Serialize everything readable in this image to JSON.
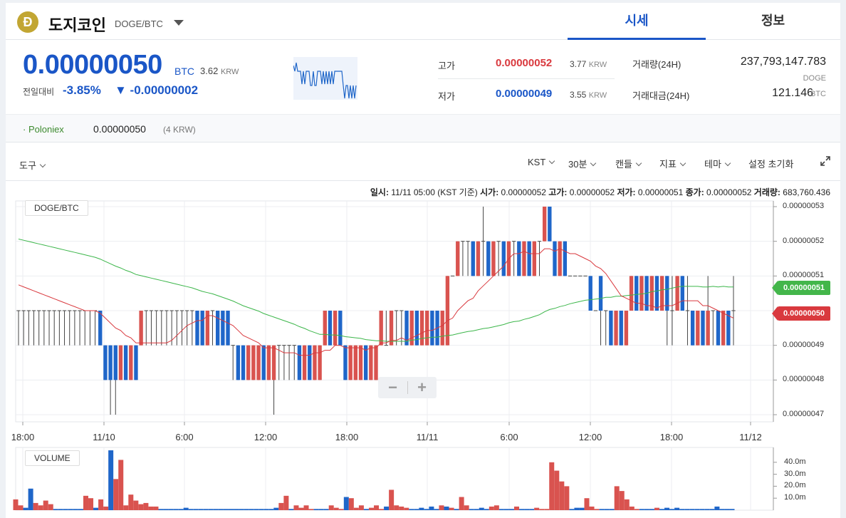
{
  "header": {
    "coin_symbol_glyph": "Ð",
    "coin_name": "도지코인",
    "pair": "DOGE/BTC",
    "tabs": [
      {
        "label": "시세"
      },
      {
        "label": "정보"
      }
    ]
  },
  "summary": {
    "price": "0.00000050",
    "price_unit": "BTC",
    "price_krw": "3.62",
    "krw_unit": "KRW",
    "change_label": "전일대비",
    "change_pct": "-3.85%",
    "change_abs": "▼ -0.00000002",
    "high_label": "고가",
    "high_value": "0.00000052",
    "high_krw": "3.77",
    "low_label": "저가",
    "low_value": "0.00000049",
    "low_krw": "3.55",
    "volume_label": "거래량(24H)",
    "volume_value": "237,793,147.783",
    "volume_unit": "DOGE",
    "amount_label": "거래대금(24H)",
    "amount_value": "121.146",
    "amount_unit": "BTC"
  },
  "exchange": {
    "name": "· Poloniex",
    "price": "0.00000050",
    "krw": "(4 KRW)"
  },
  "toolbar": {
    "tools": "도구",
    "timezone": "KST",
    "interval": "30분",
    "chart_type": "캔들",
    "indicator": "지표",
    "theme": "테마",
    "reset": "설정 초기화"
  },
  "infobar": {
    "time_label": "일시:",
    "time_value": "11/11 05:00 (KST 기준)",
    "open_label": "시가:",
    "open_value": "0.00000052",
    "high_label": "고가:",
    "high_value": "0.00000052",
    "low_label": "저가:",
    "low_value": "0.00000051",
    "close_label": "종가:",
    "close_value": "0.00000052",
    "volume_label": "거래량:",
    "volume_value": "683,760.436"
  },
  "chart_data": {
    "type": "candlestick",
    "series_label": "DOGE/BTC",
    "volume_label": "VOLUME",
    "y_ticks": [
      "0.00000053",
      "0.00000052",
      "0.00000051",
      "0.00000049",
      "0.00000048",
      "0.00000047"
    ],
    "x_ticks": [
      "18:00",
      "11/10",
      "6:00",
      "12:00",
      "18:00",
      "11/11",
      "6:00",
      "12:00",
      "18:00",
      "11/12"
    ],
    "volume_ticks": [
      "40.0m",
      "30.0m",
      "20.0m",
      "10.0m"
    ],
    "ylim": [
      4.7e-08,
      5.3e-08
    ],
    "last_ma_value": "0.00000051",
    "last_price_value": "0.00000050",
    "colors": {
      "up": "#d9534f",
      "down": "#1f66c9",
      "ma_long": "#3cb64a",
      "ma_short": "#d9393e"
    },
    "candles": [
      [
        50,
        50,
        50,
        49
      ],
      [
        50,
        50,
        50,
        49
      ],
      [
        50,
        50,
        50,
        49
      ],
      [
        50,
        50,
        50,
        49
      ],
      [
        50,
        50,
        50,
        49
      ],
      [
        50,
        50,
        50,
        49
      ],
      [
        50,
        50,
        50,
        49
      ],
      [
        50,
        50,
        50,
        49
      ],
      [
        50,
        50,
        50,
        49
      ],
      [
        50,
        50,
        50,
        49
      ],
      [
        50,
        50,
        50,
        49
      ],
      [
        50,
        50,
        50,
        49
      ],
      [
        50,
        50,
        50,
        49
      ],
      [
        50,
        50,
        50,
        49
      ],
      [
        50,
        50,
        50,
        49
      ],
      [
        50,
        50,
        50,
        49
      ],
      [
        50,
        49,
        50,
        49
      ],
      [
        49,
        48,
        49,
        48
      ],
      [
        49,
        48,
        49,
        47
      ],
      [
        49,
        48,
        49,
        47
      ],
      [
        48,
        49,
        49,
        48
      ],
      [
        49,
        48,
        49,
        48
      ],
      [
        48,
        49,
        49,
        48
      ],
      [
        49,
        48,
        49,
        48
      ],
      [
        49,
        50,
        50,
        49
      ],
      [
        50,
        50,
        50,
        49
      ],
      [
        50,
        50,
        50,
        49
      ],
      [
        50,
        50,
        50,
        49
      ],
      [
        50,
        50,
        50,
        49
      ],
      [
        50,
        50,
        50,
        49
      ],
      [
        50,
        50,
        50,
        49
      ],
      [
        50,
        50,
        50,
        49
      ],
      [
        50,
        50,
        50,
        49
      ],
      [
        50,
        50,
        50,
        49
      ],
      [
        50,
        50,
        50,
        49
      ],
      [
        50,
        49,
        50,
        49
      ],
      [
        50,
        49,
        50,
        49
      ],
      [
        49,
        50,
        50,
        49
      ],
      [
        50,
        50,
        50,
        49
      ],
      [
        50,
        49,
        50,
        49
      ],
      [
        50,
        49,
        50,
        49
      ],
      [
        50,
        49,
        50,
        49
      ],
      [
        49,
        49,
        49,
        48
      ],
      [
        49,
        48,
        49,
        48
      ],
      [
        49,
        48,
        49,
        48
      ],
      [
        48,
        49,
        49,
        48
      ],
      [
        48,
        49,
        49,
        48
      ],
      [
        48,
        49,
        49,
        48
      ],
      [
        49,
        48,
        49,
        48
      ],
      [
        48,
        49,
        49,
        48
      ],
      [
        48,
        49,
        49,
        47
      ],
      [
        49,
        49,
        49,
        48
      ],
      [
        49,
        49,
        49,
        48
      ],
      [
        49,
        49,
        49,
        48
      ],
      [
        49,
        49,
        49,
        48
      ],
      [
        49,
        48,
        49,
        48
      ],
      [
        48,
        49,
        49,
        48
      ],
      [
        49,
        48,
        49,
        48
      ],
      [
        48,
        49,
        49,
        48
      ],
      [
        48,
        49,
        49,
        48
      ],
      [
        49,
        50,
        50,
        49
      ],
      [
        50,
        49,
        50,
        49
      ],
      [
        49,
        50,
        50,
        49
      ],
      [
        50,
        49,
        50,
        49
      ],
      [
        49,
        48,
        49,
        48
      ],
      [
        48,
        49,
        49,
        48
      ],
      [
        48,
        49,
        49,
        48
      ],
      [
        48,
        49,
        49,
        48
      ],
      [
        49,
        48,
        49,
        48
      ],
      [
        48,
        49,
        49,
        48
      ],
      [
        48,
        49,
        49,
        48
      ],
      [
        49,
        50,
        50,
        49
      ],
      [
        49,
        49,
        50,
        49
      ],
      [
        49,
        50,
        50,
        49
      ],
      [
        50,
        50,
        50,
        49
      ],
      [
        50,
        50,
        50,
        49
      ],
      [
        50,
        49,
        50,
        49
      ],
      [
        49,
        50,
        50,
        49
      ],
      [
        50,
        49,
        50,
        49
      ],
      [
        49,
        50,
        50,
        49
      ],
      [
        49,
        50,
        50,
        49
      ],
      [
        50,
        49,
        50,
        49
      ],
      [
        50,
        49,
        50,
        49
      ],
      [
        49,
        50,
        50,
        49
      ],
      [
        49,
        51,
        51,
        49
      ],
      [
        51,
        51,
        51,
        51
      ],
      [
        51,
        52,
        52,
        51
      ],
      [
        52,
        52,
        52,
        51
      ],
      [
        52,
        52,
        52,
        51
      ],
      [
        52,
        51,
        52,
        51
      ],
      [
        51,
        52,
        52,
        51
      ],
      [
        52,
        52,
        53,
        51
      ],
      [
        52,
        51,
        52,
        51
      ],
      [
        51,
        52,
        52,
        51
      ],
      [
        52,
        52,
        52,
        51
      ],
      [
        52,
        51,
        52,
        51
      ],
      [
        51,
        52,
        52,
        51
      ],
      [
        52,
        52,
        52,
        51
      ],
      [
        52,
        51,
        52,
        51
      ],
      [
        51,
        52,
        52,
        51
      ],
      [
        52,
        51,
        52,
        51
      ],
      [
        51,
        52,
        52,
        51
      ],
      [
        52,
        52,
        52,
        51
      ],
      [
        52,
        53,
        53,
        52
      ],
      [
        53,
        52,
        53,
        52
      ],
      [
        52,
        51,
        52,
        51
      ],
      [
        51,
        52,
        52,
        51
      ],
      [
        52,
        51,
        52,
        51
      ],
      [
        51,
        51,
        51,
        51
      ],
      [
        51,
        51,
        51,
        51
      ],
      [
        51,
        51,
        51,
        51
      ],
      [
        51,
        51,
        51,
        51
      ],
      [
        51,
        50,
        51,
        50
      ],
      [
        50,
        50,
        50,
        50
      ],
      [
        51,
        50,
        51,
        49
      ],
      [
        50,
        50,
        50,
        49
      ],
      [
        50,
        49,
        50,
        49
      ],
      [
        49,
        50,
        50,
        49
      ],
      [
        50,
        49,
        50,
        49
      ],
      [
        49,
        50,
        50,
        49
      ],
      [
        50,
        51,
        51,
        50
      ],
      [
        51,
        50,
        51,
        50
      ],
      [
        50,
        51,
        51,
        50
      ],
      [
        51,
        50,
        51,
        50
      ],
      [
        50,
        51,
        51,
        50
      ],
      [
        51,
        50,
        51,
        50
      ],
      [
        50,
        51,
        51,
        50
      ],
      [
        51,
        50,
        51,
        49
      ],
      [
        50,
        50,
        51,
        49
      ],
      [
        50,
        51,
        51,
        50
      ],
      [
        51,
        50,
        51,
        50
      ],
      [
        50,
        50,
        51,
        49
      ],
      [
        50,
        49,
        50,
        49
      ],
      [
        49,
        50,
        50,
        49
      ],
      [
        50,
        49,
        50,
        49
      ],
      [
        49,
        50,
        51,
        49
      ],
      [
        50,
        50,
        50,
        49
      ],
      [
        50,
        49,
        50,
        49
      ],
      [
        49,
        50,
        50,
        49
      ],
      [
        50,
        49,
        50,
        49
      ],
      [
        50,
        50,
        51,
        49
      ]
    ],
    "volume": [
      [
        9,
        1
      ],
      [
        4,
        1
      ],
      [
        2,
        0
      ],
      [
        18,
        0
      ],
      [
        6,
        1
      ],
      [
        4,
        1
      ],
      [
        8,
        1
      ],
      [
        5,
        1
      ],
      [
        1,
        0
      ],
      [
        1,
        0
      ],
      [
        1,
        0
      ],
      [
        1,
        0
      ],
      [
        1,
        0
      ],
      [
        1,
        0
      ],
      [
        12,
        1
      ],
      [
        10,
        1
      ],
      [
        2,
        0
      ],
      [
        9,
        1
      ],
      [
        3,
        1
      ],
      [
        50,
        0
      ],
      [
        26,
        1
      ],
      [
        42,
        1
      ],
      [
        4,
        1
      ],
      [
        13,
        1
      ],
      [
        8,
        1
      ],
      [
        5,
        1
      ],
      [
        6,
        1
      ],
      [
        3,
        1
      ],
      [
        3,
        1
      ],
      [
        1,
        0
      ],
      [
        1,
        0
      ],
      [
        1,
        0
      ],
      [
        1,
        0
      ],
      [
        1,
        0
      ],
      [
        2,
        0
      ],
      [
        1,
        0
      ],
      [
        1,
        0
      ],
      [
        1,
        0
      ],
      [
        1,
        0
      ],
      [
        1,
        0
      ],
      [
        1,
        0
      ],
      [
        1,
        0
      ],
      [
        1,
        0
      ],
      [
        1,
        0
      ],
      [
        1,
        0
      ],
      [
        1,
        0
      ],
      [
        1,
        0
      ],
      [
        1,
        0
      ],
      [
        1,
        0
      ],
      [
        1,
        0
      ],
      [
        1,
        0
      ],
      [
        1,
        0
      ],
      [
        2,
        0
      ],
      [
        6,
        1
      ],
      [
        12,
        1
      ],
      [
        1,
        0
      ],
      [
        4,
        1
      ],
      [
        2,
        1
      ],
      [
        4,
        1
      ],
      [
        1,
        1
      ],
      [
        1,
        0
      ],
      [
        1,
        0
      ],
      [
        1,
        0
      ],
      [
        4,
        1
      ],
      [
        2,
        1
      ],
      [
        1,
        1
      ],
      [
        11,
        0
      ],
      [
        10,
        1
      ],
      [
        2,
        1
      ],
      [
        4,
        1
      ],
      [
        1,
        0
      ],
      [
        2,
        1
      ],
      [
        4,
        1
      ],
      [
        1,
        1
      ],
      [
        3,
        0
      ],
      [
        17,
        1
      ],
      [
        4,
        1
      ],
      [
        3,
        1
      ],
      [
        2,
        1
      ],
      [
        1,
        0
      ],
      [
        1,
        0
      ],
      [
        2,
        0
      ],
      [
        1,
        0
      ],
      [
        3,
        0
      ],
      [
        1,
        0
      ],
      [
        4,
        1
      ],
      [
        3,
        0
      ],
      [
        2,
        1
      ],
      [
        1,
        0
      ],
      [
        11,
        1
      ],
      [
        4,
        1
      ],
      [
        1,
        0
      ],
      [
        1,
        0
      ],
      [
        2,
        0
      ],
      [
        1,
        0
      ],
      [
        3,
        1
      ],
      [
        4,
        1
      ],
      [
        1,
        0
      ],
      [
        1,
        0
      ],
      [
        1,
        0
      ],
      [
        3,
        1
      ],
      [
        1,
        0
      ],
      [
        1,
        0
      ],
      [
        1,
        0
      ],
      [
        2,
        1
      ],
      [
        1,
        1
      ],
      [
        1,
        1
      ],
      [
        40,
        1
      ],
      [
        33,
        1
      ],
      [
        24,
        1
      ],
      [
        20,
        1
      ],
      [
        1,
        0
      ],
      [
        2,
        0
      ],
      [
        2,
        0
      ],
      [
        10,
        1
      ],
      [
        3,
        1
      ],
      [
        1,
        1
      ],
      [
        1,
        0
      ],
      [
        1,
        0
      ],
      [
        1,
        0
      ],
      [
        20,
        1
      ],
      [
        16,
        1
      ],
      [
        9,
        1
      ],
      [
        3,
        1
      ],
      [
        1,
        1
      ],
      [
        1,
        0
      ],
      [
        1,
        0
      ],
      [
        1,
        0
      ],
      [
        2,
        1
      ],
      [
        1,
        0
      ],
      [
        2,
        0
      ],
      [
        1,
        0
      ],
      [
        2,
        0
      ],
      [
        1,
        0
      ],
      [
        1,
        0
      ],
      [
        1,
        0
      ],
      [
        1,
        0
      ],
      [
        1,
        0
      ],
      [
        1,
        0
      ],
      [
        1,
        0
      ],
      [
        3,
        0
      ],
      [
        1,
        0
      ],
      [
        1,
        0
      ],
      [
        1,
        0
      ]
    ]
  }
}
